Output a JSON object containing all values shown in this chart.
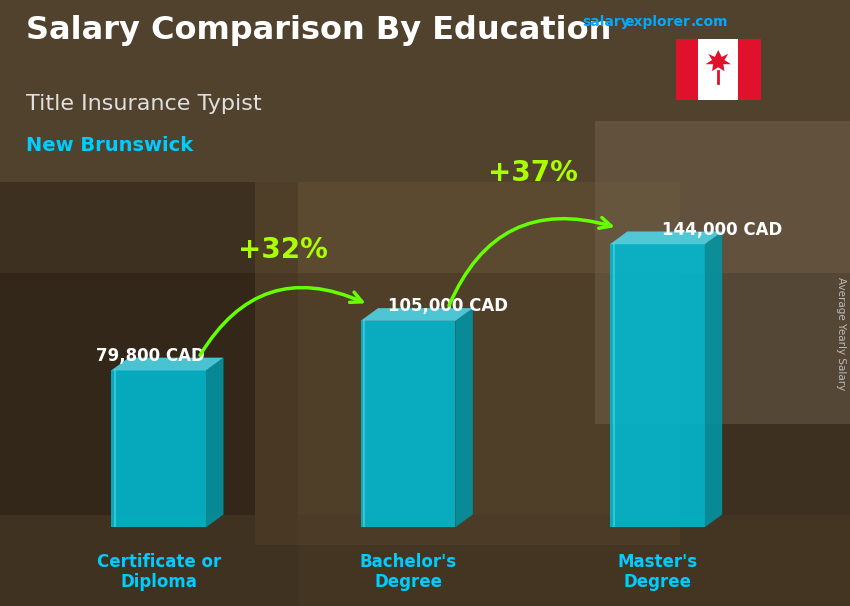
{
  "title_main": "Salary Comparison By Education",
  "subtitle1": "Title Insurance Typist",
  "subtitle2": "New Brunswick",
  "watermark_salary": "salary",
  "watermark_explorer": "explorer",
  "watermark_com": ".com",
  "ylabel_right": "Average Yearly Salary",
  "categories": [
    "Certificate or\nDiploma",
    "Bachelor's\nDegree",
    "Master's\nDegree"
  ],
  "values": [
    79800,
    105000,
    144000
  ],
  "value_labels": [
    "79,800 CAD",
    "105,000 CAD",
    "144,000 CAD"
  ],
  "pct_labels": [
    "+32%",
    "+37%"
  ],
  "bar_front_color": "#00bcd4",
  "bar_top_color": "#4dd9ec",
  "bar_side_color": "#0097a7",
  "bar_dark_side": "#006978",
  "bg_color": "#4a3a2a",
  "title_color": "#ffffff",
  "subtitle1_color": "#e0e0e0",
  "subtitle2_color": "#00ccff",
  "category_color": "#00ccff",
  "value_label_color": "#ffffff",
  "pct_color": "#aaff00",
  "arrow_color": "#66ff00",
  "watermark_salary_color": "#00aaff",
  "watermark_explorer_color": "#00aaff",
  "watermark_com_color": "#00aaff",
  "ylim": [
    0,
    185000
  ],
  "bar_width": 0.38,
  "bar_positions": [
    0.5,
    1.5,
    2.5
  ],
  "xlim": [
    0,
    3.0
  ],
  "title_fontsize": 23,
  "subtitle1_fontsize": 16,
  "subtitle2_fontsize": 14,
  "value_fontsize": 12,
  "pct_fontsize": 20,
  "cat_fontsize": 12,
  "depth_x": 0.07,
  "depth_y_ratio": 0.035
}
